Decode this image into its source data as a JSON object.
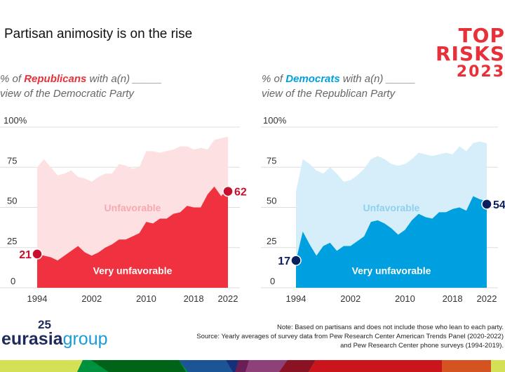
{
  "title": "Partisan animosity is on the rise",
  "logo": {
    "line1": "TOP",
    "line2": "RISKS",
    "line3": "2023"
  },
  "colors": {
    "rep_dark": "#f0313f",
    "rep_light": "#fde0e2",
    "rep_label": "#c8102e",
    "dem_dark": "#009fdf",
    "dem_light": "#d6eef9",
    "dem_label": "#0a1f5c"
  },
  "chart_data": [
    {
      "type": "area",
      "subtitle_pre": "% of ",
      "party": "Republicans",
      "subtitle_post": " with a(n) _____",
      "subtitle_line2": "view of the Democratic Party",
      "x": [
        1994,
        1995,
        1996,
        1997,
        1998,
        1999,
        2000,
        2001,
        2002,
        2003,
        2004,
        2005,
        2006,
        2007,
        2008,
        2009,
        2010,
        2011,
        2012,
        2013,
        2014,
        2015,
        2016,
        2017,
        2018,
        2019,
        2020,
        2021,
        2022
      ],
      "series": [
        {
          "name": "Unfavorable",
          "values": [
            75,
            80,
            75,
            70,
            71,
            73,
            69,
            68,
            66,
            69,
            71,
            71,
            77,
            76,
            74,
            75,
            85,
            85,
            84,
            85,
            86,
            88,
            88,
            86,
            87,
            86,
            92,
            93,
            94
          ]
        },
        {
          "name": "Very unfavorable",
          "values": [
            21,
            20,
            19,
            17,
            20,
            23,
            26,
            22,
            20,
            22,
            25,
            27,
            30,
            30,
            32,
            34,
            41,
            40,
            43,
            43,
            46,
            47,
            51,
            50,
            50,
            58,
            63,
            57,
            62
          ]
        }
      ],
      "start_label": "21",
      "end_label": "62",
      "yticks": [
        "0",
        "25",
        "50",
        "75",
        "100%"
      ],
      "ylim": [
        0,
        100
      ],
      "xticks": [
        "1994",
        "2002",
        "2010",
        "2018",
        "2022"
      ],
      "grid": true
    },
    {
      "type": "area",
      "subtitle_pre": "% of ",
      "party": "Democrats",
      "subtitle_post": " with a(n) _____",
      "subtitle_line2": "view of the Republican Party",
      "x": [
        1994,
        1995,
        1996,
        1997,
        1998,
        1999,
        2000,
        2001,
        2002,
        2003,
        2004,
        2005,
        2006,
        2007,
        2008,
        2009,
        2010,
        2011,
        2012,
        2013,
        2014,
        2015,
        2016,
        2017,
        2018,
        2019,
        2020,
        2021,
        2022
      ],
      "series": [
        {
          "name": "Unfavorable",
          "values": [
            60,
            80,
            77,
            73,
            71,
            75,
            71,
            66,
            67,
            70,
            74,
            80,
            82,
            80,
            77,
            76,
            77,
            80,
            84,
            83,
            82,
            83,
            84,
            83,
            88,
            85,
            90,
            91,
            90
          ]
        },
        {
          "name": "Very unfavorable",
          "values": [
            17,
            35,
            27,
            20,
            26,
            28,
            23,
            26,
            26,
            29,
            32,
            41,
            42,
            40,
            37,
            33,
            36,
            42,
            46,
            44,
            43,
            47,
            47,
            49,
            50,
            48,
            57,
            55,
            54
          ]
        }
      ],
      "start_label": "17",
      "end_label": "54",
      "yticks": [
        "0",
        "25",
        "50",
        "75",
        "100%"
      ],
      "ylim": [
        0,
        100
      ],
      "xticks": [
        "1994",
        "2002",
        "2010",
        "2018",
        "2022"
      ],
      "grid": true
    }
  ],
  "note": {
    "line1": "Note: Based on partisans and does not include those who lean to each party.",
    "line2": "Source: Yearly averages of survey data from Pew Research Center American Trends Panel (2020-2022)",
    "line3": "and Pew Research Center phone surveys (1994-2019)."
  },
  "brand": {
    "years": "25",
    "name1": "eurasia",
    "name2": "group"
  }
}
